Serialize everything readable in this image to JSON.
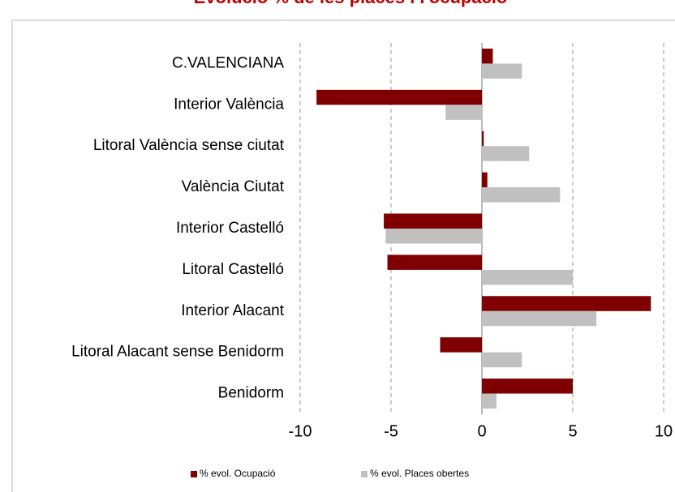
{
  "chart_data": {
    "type": "bar",
    "orientation": "horizontal",
    "title": "Evolució % de les places i l'ocupació",
    "categories": [
      "C.VALENCIANA",
      "Interior València",
      "Litoral València sense ciutat",
      "València Ciutat",
      "Interior Castelló",
      "Litoral Castelló",
      "Interior Alacant",
      "Litoral Alacant sense Benidorm",
      "Benidorm"
    ],
    "series": [
      {
        "name": "% evol. Ocupació",
        "color": "#7f0000",
        "values": [
          0.6,
          -9.1,
          0.1,
          0.3,
          -5.4,
          -5.2,
          9.3,
          -2.3,
          5.0
        ]
      },
      {
        "name": "% evol. Places obertes",
        "color": "#c0c0c0",
        "values": [
          2.2,
          -2.0,
          2.6,
          4.3,
          -5.3,
          5.0,
          6.3,
          2.2,
          0.8
        ]
      }
    ],
    "xlim": [
      -10,
      10
    ],
    "xticks": [
      -10,
      -5,
      0,
      5,
      10
    ],
    "grid": true,
    "legend": "bottom"
  }
}
